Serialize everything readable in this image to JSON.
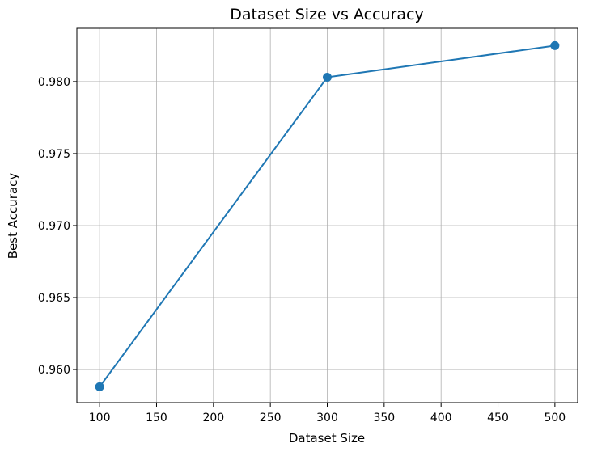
{
  "chart_data": {
    "type": "line",
    "title": "Dataset Size vs Accuracy",
    "xlabel": "Dataset Size",
    "ylabel": "Best Accuracy",
    "x": [
      100,
      300,
      500
    ],
    "series": [
      {
        "values": [
          0.9588,
          0.9803,
          0.9825
        ],
        "color": "#1f77b4",
        "marker": "circle"
      }
    ],
    "xlim": [
      80,
      520
    ],
    "ylim": [
      0.9577,
      0.9837
    ],
    "xticks": [
      100,
      150,
      200,
      250,
      300,
      350,
      400,
      450,
      500
    ],
    "xtick_labels": [
      "100",
      "150",
      "200",
      "250",
      "300",
      "350",
      "400",
      "450",
      "500"
    ],
    "yticks": [
      0.96,
      0.965,
      0.97,
      0.975,
      0.98
    ],
    "ytick_labels": [
      "0.960",
      "0.965",
      "0.970",
      "0.975",
      "0.980"
    ],
    "grid": true,
    "legend": false
  }
}
